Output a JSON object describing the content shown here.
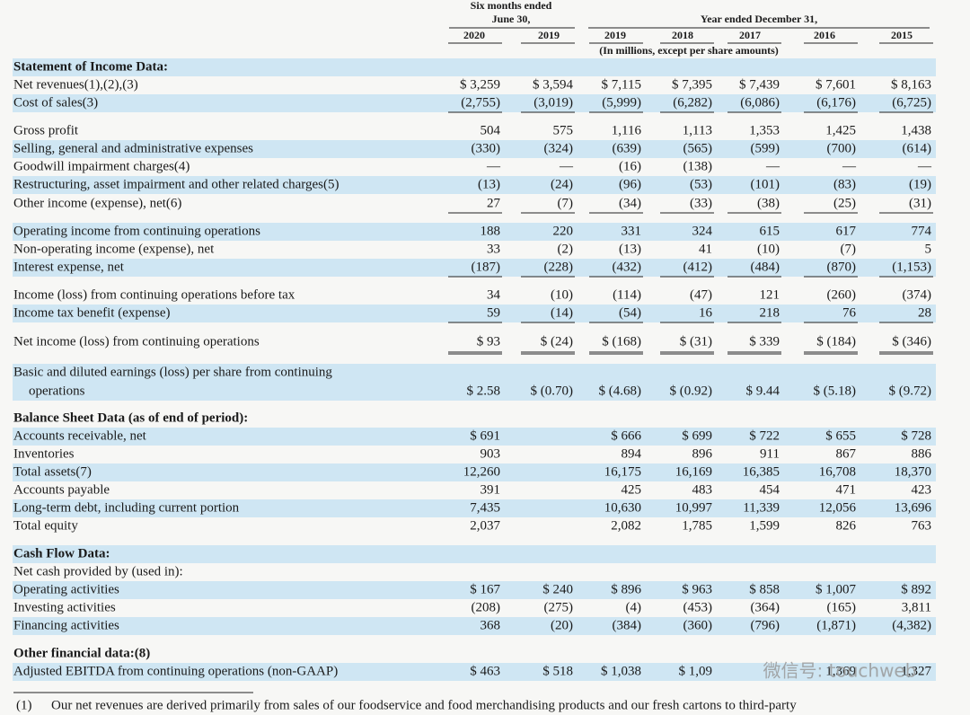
{
  "header": {
    "six_months": "Six months ended",
    "june": "June 30,",
    "year_ended": "Year ended December 31,",
    "years": [
      "2020",
      "2019",
      "2019",
      "2018",
      "2017",
      "2016",
      "2015"
    ],
    "units": "(In millions, except per share amounts)"
  },
  "rows": [
    {
      "label": "Statement of Income Data:",
      "heading": true
    },
    {
      "label": "Net revenues(1),(2),(3)",
      "cells": [
        "$ 3,259",
        "$ 3,594",
        "$ 7,115",
        "$ 7,395",
        "$ 7,439",
        "$ 7,601",
        "$ 8,163"
      ]
    },
    {
      "label": "Cost of sales(3)",
      "cells": [
        "(2,755)",
        "(3,019)",
        "(5,999)",
        "(6,282)",
        "(6,086)",
        "(6,176)",
        "(6,725)"
      ]
    },
    {
      "label": "Gross profit",
      "cells": [
        "504",
        "575",
        "1,116",
        "1,113",
        "1,353",
        "1,425",
        "1,438"
      ]
    },
    {
      "label": "Selling, general and administrative expenses",
      "cells": [
        "(330)",
        "(324)",
        "(639)",
        "(565)",
        "(599)",
        "(700)",
        "(614)"
      ]
    },
    {
      "label": "Goodwill impairment charges(4)",
      "cells": [
        "—",
        "—",
        "(16)",
        "(138)",
        "—",
        "—",
        "—"
      ]
    },
    {
      "label": "Restructuring, asset impairment and other related charges(5)",
      "cells": [
        "(13)",
        "(24)",
        "(96)",
        "(53)",
        "(101)",
        "(83)",
        "(19)"
      ]
    },
    {
      "label": "Other income (expense), net(6)",
      "cells": [
        "27",
        "(7)",
        "(34)",
        "(33)",
        "(38)",
        "(25)",
        "(31)"
      ]
    },
    {
      "label": "Operating income from continuing operations",
      "cells": [
        "188",
        "220",
        "331",
        "324",
        "615",
        "617",
        "774"
      ]
    },
    {
      "label": "Non-operating income (expense), net",
      "cells": [
        "33",
        "(2)",
        "(13)",
        "41",
        "(10)",
        "(7)",
        "5"
      ]
    },
    {
      "label": "Interest expense, net",
      "cells": [
        "(187)",
        "(228)",
        "(432)",
        "(412)",
        "(484)",
        "(870)",
        "(1,153)"
      ]
    },
    {
      "label": "Income (loss) from continuing operations before tax",
      "cells": [
        "34",
        "(10)",
        "(114)",
        "(47)",
        "121",
        "(260)",
        "(374)"
      ]
    },
    {
      "label": "Income tax benefit (expense)",
      "cells": [
        "59",
        "(14)",
        "(54)",
        "16",
        "218",
        "76",
        "28"
      ]
    },
    {
      "label": "Net income (loss) from continuing operations",
      "cells": [
        "$ 93",
        "$ (24)",
        "$ (168)",
        "$ (31)",
        "$ 339",
        "$ (184)",
        "$ (346)"
      ]
    },
    {
      "label": "Basic and diluted earnings (loss) per share from continuing",
      "label2": "operations",
      "cells": [
        "$ 2.58",
        "$ (0.70)",
        "$ (4.68)",
        "$ (0.92)",
        "$ 9.44",
        "$ (5.18)",
        "$ (9.72)"
      ]
    },
    {
      "label": "Balance Sheet Data (as of end of period):",
      "heading": true
    },
    {
      "label": "Accounts receivable, net",
      "cells": [
        "$ 691",
        null,
        "$ 666",
        "$ 699",
        "$ 722",
        "$ 655",
        "$ 728"
      ]
    },
    {
      "label": "Inventories",
      "cells": [
        "903",
        null,
        "894",
        "896",
        "911",
        "867",
        "886"
      ]
    },
    {
      "label": "Total assets(7)",
      "cells": [
        "12,260",
        null,
        "16,175",
        "16,169",
        "16,385",
        "16,708",
        "18,370"
      ]
    },
    {
      "label": "Accounts payable",
      "cells": [
        "391",
        null,
        "425",
        "483",
        "454",
        "471",
        "423"
      ]
    },
    {
      "label": "Long-term debt, including current portion",
      "cells": [
        "7,435",
        null,
        "10,630",
        "10,997",
        "11,339",
        "12,056",
        "13,696"
      ]
    },
    {
      "label": "Total equity",
      "cells": [
        "2,037",
        null,
        "2,082",
        "1,785",
        "1,599",
        "826",
        "763"
      ]
    },
    {
      "label": "Cash Flow Data:",
      "heading": true
    },
    {
      "label": "Net cash provided by (used in):"
    },
    {
      "label": "Operating activities",
      "cells": [
        "$ 167",
        "$ 240",
        "$ 896",
        "$ 963",
        "$ 858",
        "$ 1,007",
        "$ 892"
      ]
    },
    {
      "label": "Investing activities",
      "cells": [
        "(208)",
        "(275)",
        "(4)",
        "(453)",
        "(364)",
        "(165)",
        "3,811"
      ]
    },
    {
      "label": "Financing activities",
      "cells": [
        "368",
        "(20)",
        "(384)",
        "(360)",
        "(796)",
        "(1,871)",
        "(4,382)"
      ]
    },
    {
      "label": "Other financial data:(8)",
      "heading": true
    },
    {
      "label": "Adjusted EBITDA from continuing operations (non-GAAP)",
      "cells": [
        "$ 463",
        "$ 518",
        "$ 1,038",
        "$ 1,09",
        null,
        "1,369",
        "1,327"
      ]
    }
  ],
  "footnote": {
    "number": "(1)",
    "text": "Our net revenues are derived primarily from sales of our foodservice and food merchandising products and our fresh cartons to third-party"
  },
  "watermark": "微信号: touchweb"
}
